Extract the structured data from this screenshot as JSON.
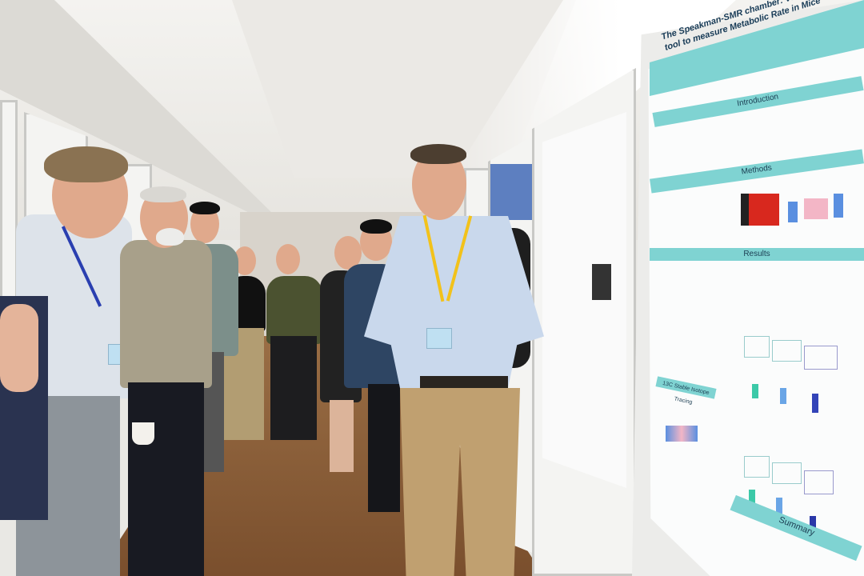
{
  "scene": {
    "description_tags": [
      "poster-session",
      "hallway",
      "audience",
      "presenter"
    ]
  },
  "poster": {
    "title": "The Speakman-SMR chamber: Validation of a new tool to measure Metabolic Rate in Mice",
    "sections": {
      "introduction": "Introduction",
      "methods": "Methods",
      "results": "Results",
      "subsection": "13C Stable Isotope Tracing",
      "summary": "Summary"
    },
    "accent_color": "#7fd3d2"
  },
  "colors": {
    "floor": "#8a5e38",
    "ceiling": "#efeeea",
    "presenter_shirt": "#c9d8ec",
    "presenter_pants": "#c0a070",
    "lanyard_presenter": "#f2c21b",
    "lanyard_audience": "#2a3fb0"
  }
}
